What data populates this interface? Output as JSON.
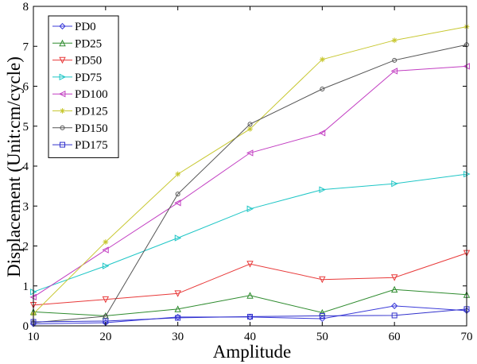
{
  "chart_data": {
    "type": "line",
    "title": "",
    "xlabel": "Amplitude",
    "ylabel": "Displacement (Unit:cm/cycle)",
    "x": [
      10,
      20,
      30,
      40,
      50,
      60,
      70
    ],
    "xlim": [
      10,
      70
    ],
    "ylim": [
      0,
      8
    ],
    "xticks": [
      10,
      20,
      30,
      40,
      50,
      60,
      70
    ],
    "yticks": [
      0,
      1,
      2,
      3,
      4,
      5,
      6,
      7,
      8
    ],
    "grid": false,
    "legend_position": "top-left",
    "series": [
      {
        "name": "PD0",
        "color": "#3b3bd9",
        "marker": "diamond",
        "values": [
          0.05,
          0.08,
          0.22,
          0.22,
          0.18,
          0.5,
          0.38
        ]
      },
      {
        "name": "PD25",
        "color": "#2e8b2e",
        "marker": "triangle-up",
        "values": [
          0.35,
          0.25,
          0.42,
          0.76,
          0.33,
          0.91,
          0.78
        ]
      },
      {
        "name": "PD50",
        "color": "#e83a3a",
        "marker": "triangle-down",
        "values": [
          0.52,
          0.66,
          0.81,
          1.55,
          1.16,
          1.21,
          1.82
        ]
      },
      {
        "name": "PD75",
        "color": "#1fc6c6",
        "marker": "triangle-right",
        "values": [
          0.85,
          1.5,
          2.2,
          2.93,
          3.41,
          3.56,
          3.8
        ]
      },
      {
        "name": "PD100",
        "color": "#c23ec2",
        "marker": "triangle-left",
        "values": [
          0.72,
          1.9,
          3.08,
          4.33,
          4.83,
          6.38,
          6.5
        ]
      },
      {
        "name": "PD125",
        "color": "#c8c832",
        "marker": "star",
        "values": [
          0.3,
          2.1,
          3.8,
          4.93,
          6.67,
          7.15,
          7.49
        ]
      },
      {
        "name": "PD150",
        "color": "#555555",
        "marker": "circle",
        "values": [
          0.08,
          0.24,
          3.3,
          5.05,
          5.93,
          6.65,
          7.04
        ]
      },
      {
        "name": "PD175",
        "color": "#3030cc",
        "marker": "square",
        "values": [
          0.1,
          0.12,
          0.2,
          0.23,
          0.25,
          0.26,
          0.42
        ]
      }
    ]
  }
}
